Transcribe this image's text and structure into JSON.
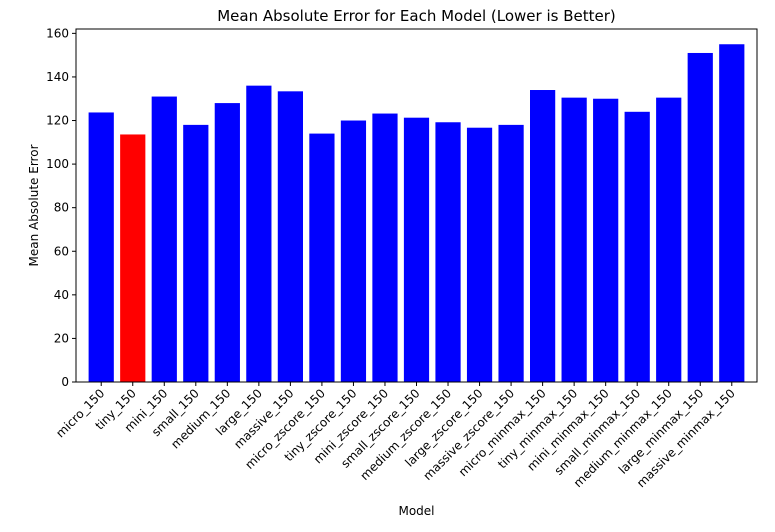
{
  "chart_data": {
    "type": "bar",
    "title": "Mean Absolute Error for Each Model (Lower is Better)",
    "xlabel": "Model",
    "ylabel": "Mean Absolute Error",
    "ylim": [
      0,
      162
    ],
    "yticks": [
      0,
      20,
      40,
      60,
      80,
      100,
      120,
      140,
      160
    ],
    "grid": false,
    "categories": [
      "micro_150",
      "tiny_150",
      "mini_150",
      "small_150",
      "medium_150",
      "large_150",
      "massive_150",
      "micro_zscore_150",
      "tiny_zscore_150",
      "mini_zscore_150",
      "small_zscore_150",
      "medium_zscore_150",
      "large_zscore_150",
      "massive_zscore_150",
      "micro_minmax_150",
      "tiny_minmax_150",
      "mini_minmax_150",
      "small_minmax_150",
      "medium_minmax_150",
      "large_minmax_150",
      "massive_minmax_150"
    ],
    "values": [
      123.7,
      113.6,
      131.0,
      118.0,
      128.0,
      136.0,
      133.4,
      114.0,
      120.0,
      123.2,
      121.3,
      119.2,
      116.7,
      118.0,
      134.0,
      130.5,
      130.0,
      124.0,
      130.5,
      151.0,
      155.0
    ],
    "highlight_index": 1,
    "colors": {
      "default": "#0000ff",
      "highlight": "#ff0000"
    }
  }
}
